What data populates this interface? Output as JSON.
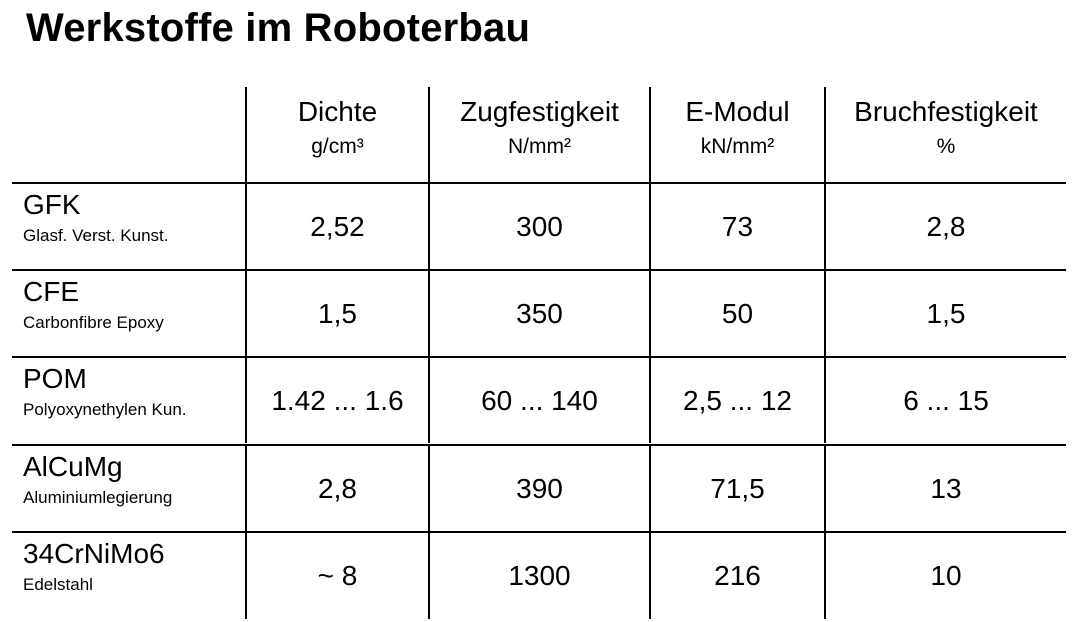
{
  "title": "Werkstoffe im Roboterbau",
  "columns": [
    {
      "name": "Dichte",
      "unit": "g/cm³"
    },
    {
      "name": "Zugfestigkeit",
      "unit": "N/mm²"
    },
    {
      "name": "E-Modul",
      "unit": "kN/mm²"
    },
    {
      "name": "Bruchfestigkeit",
      "unit": "%"
    }
  ],
  "rows": [
    {
      "name": "GFK",
      "desc": "Glasf. Verst. Kunst.",
      "values": [
        "2,52",
        "300",
        "73",
        "2,8"
      ]
    },
    {
      "name": "CFE",
      "desc": "Carbonfibre Epoxy",
      "values": [
        "1,5",
        "350",
        "50",
        "1,5"
      ]
    },
    {
      "name": "POM",
      "desc": "Polyoxynethylen Kun.",
      "values": [
        "1.42 ... 1.6",
        "60 ... 140",
        "2,5 ... 12",
        "6 ... 15"
      ]
    },
    {
      "name": "AlCuMg",
      "desc": "Aluminiumlegierung",
      "values": [
        "2,8",
        "390",
        "71,5",
        "13"
      ]
    },
    {
      "name": "34CrNiMo6",
      "desc": "Edelstahl",
      "values": [
        "~ 8",
        "1300",
        "216",
        "10"
      ]
    }
  ]
}
